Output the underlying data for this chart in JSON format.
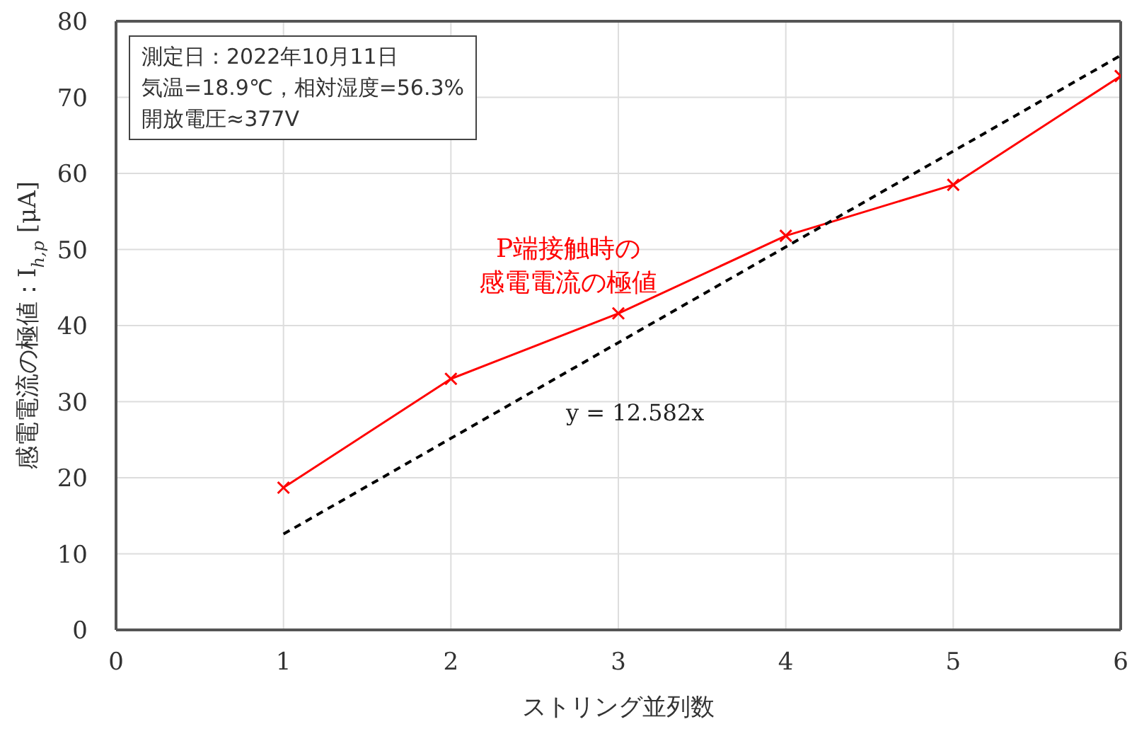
{
  "chart_data": {
    "type": "line",
    "xlabel": "ストリング並列数",
    "ylabel": "感電電流の極値：I$_{h,p}$ [μA]",
    "annotations": [
      "測定日：2022年10月11日",
      "気温=18.9℃，相対湿度=56.3%",
      "開放電圧≈377V"
    ],
    "x": [
      1,
      2,
      3,
      4,
      5,
      6
    ],
    "series": [
      {
        "name": "P端接触時の感電電流の極値",
        "color": "#ff0000",
        "values": [
          18.7,
          33.0,
          41.6,
          51.8,
          58.5,
          72.8
        ],
        "marker": "cross",
        "line_style": "solid"
      },
      {
        "name": "y = 12.582x",
        "type": "line",
        "color": "#000000",
        "x": [
          1,
          6
        ],
        "values": [
          12.6,
          75.5
        ],
        "marker": "none",
        "line_style": "dashed"
      }
    ],
    "xlim": [
      0,
      6
    ],
    "xticks": [
      0,
      1,
      2,
      3,
      4,
      5,
      6
    ],
    "ylim": [
      0,
      80
    ],
    "yticks": [
      0,
      10,
      20,
      30,
      40,
      50,
      60,
      70,
      80
    ],
    "grid": true
  }
}
